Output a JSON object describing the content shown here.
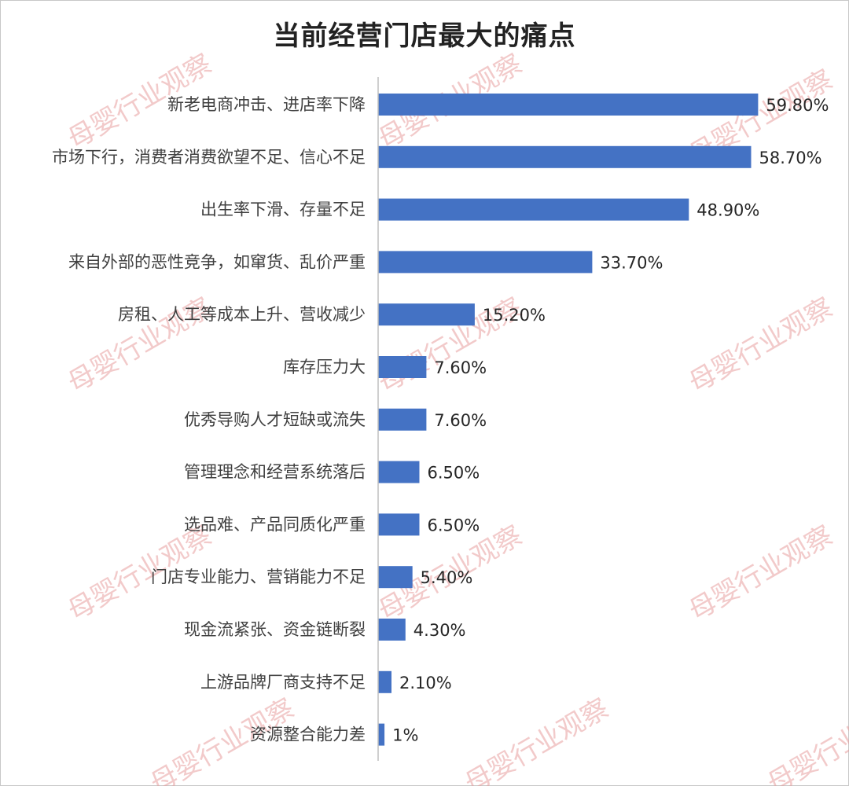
{
  "chart_data": {
    "type": "bar",
    "orientation": "horizontal",
    "title": "当前经营门店最大的痛点",
    "xlabel": "",
    "ylabel": "",
    "categories": [
      "新老电商冲击、进店率下降",
      "市场下行，消费者消费欲望不足、信心不足",
      "出生率下滑、存量不足",
      "来自外部的恶性竞争，如窜货、乱价严重",
      "房租、人工等成本上升、营收减少",
      "库存压力大",
      "优秀导购人才短缺或流失",
      "管理理念和经营系统落后",
      "选品难、产品同质化严重",
      "门店专业能力、营销能力不足",
      "现金流紧张、资金链断裂",
      "上游品牌厂商支持不足",
      "资源整合能力差"
    ],
    "values": [
      59.8,
      58.7,
      48.9,
      33.7,
      15.2,
      7.6,
      7.6,
      6.5,
      6.5,
      5.4,
      4.3,
      2.1,
      1
    ],
    "value_labels": [
      "59.80%",
      "58.70%",
      "48.90%",
      "33.70%",
      "15.20%",
      "7.60%",
      "7.60%",
      "6.50%",
      "6.50%",
      "5.40%",
      "4.30%",
      "2.10%",
      "1%"
    ],
    "xlim": [
      0,
      60
    ],
    "grid": false,
    "legend": "none",
    "bar_color": "#4472C4"
  },
  "watermark": {
    "text": "母婴行业观察",
    "color": "#e8a0a0"
  }
}
